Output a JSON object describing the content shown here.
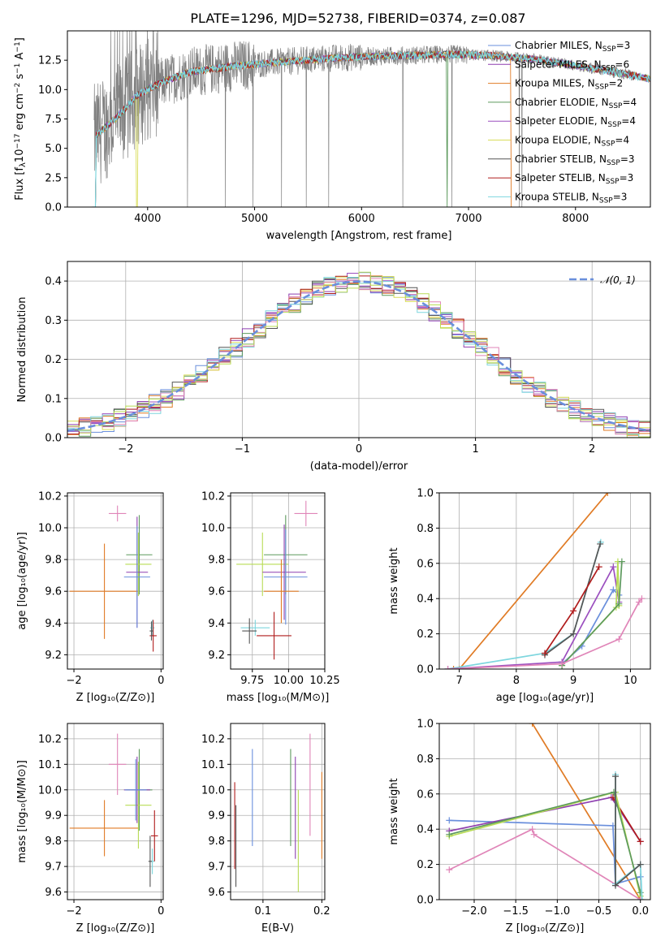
{
  "title": "PLATE=1296, MJD=52738, FIBERID=0374, z=0.087",
  "colors": {
    "chabrier_miles": "#6a8fdc",
    "salpeter_miles": "#8e3fb0",
    "kroupa_miles": "#e07b25",
    "chabrier_elodie": "#5d9a5d",
    "salpeter_elodie": "#9b4fbf",
    "kroupa_elodie": "#d9dd5a",
    "chabrier_stelib": "#555555",
    "salpeter_stelib": "#b01c1c",
    "kroupa_stelib": "#7dd6de",
    "pink": "#e085b8",
    "lime": "#b8dc55",
    "data": "#808080"
  },
  "legend_spectrum": [
    {
      "key": "chabrier_miles",
      "label": "Chabrier MILES, N",
      "sub": "SSP",
      "eq": "=3"
    },
    {
      "key": "salpeter_miles",
      "label": "Salpeter MILES, N",
      "sub": "SSP",
      "eq": "=6"
    },
    {
      "key": "kroupa_miles",
      "label": "Kroupa MILES, N",
      "sub": "SSP",
      "eq": "=2"
    },
    {
      "key": "chabrier_elodie",
      "label": "Chabrier ELODIE, N",
      "sub": "SSP",
      "eq": "=4"
    },
    {
      "key": "salpeter_elodie",
      "label": "Salpeter ELODIE, N",
      "sub": "SSP",
      "eq": "=4"
    },
    {
      "key": "kroupa_elodie",
      "label": "Kroupa ELODIE, N",
      "sub": "SSP",
      "eq": "=4"
    },
    {
      "key": "chabrier_stelib",
      "label": "Chabrier STELIB, N",
      "sub": "SSP",
      "eq": "=3"
    },
    {
      "key": "salpeter_stelib",
      "label": "Salpeter STELIB, N",
      "sub": "SSP",
      "eq": "=3"
    },
    {
      "key": "kroupa_stelib",
      "label": "Kroupa STELIB, N",
      "sub": "SSP",
      "eq": "=3"
    }
  ],
  "chart_data": [
    {
      "id": "spectrum",
      "type": "line",
      "xlabel": "wavelength [Angstrom, rest frame]",
      "ylabel_parts": [
        "Flux [f",
        "λ",
        "10",
        "−17",
        " erg cm",
        "−2",
        " s",
        "−1",
        " A",
        "−1",
        "]"
      ],
      "xlim": [
        3250,
        8700
      ],
      "ylim": [
        0,
        15
      ],
      "xticks": [
        4000,
        5000,
        6000,
        7000,
        8000
      ],
      "yticks": [
        0.0,
        2.5,
        5.0,
        7.5,
        10.0,
        12.5
      ],
      "ytick_labels": [
        "0.0",
        "2.5",
        "5.0",
        "7.5",
        "10.0",
        "12.5"
      ],
      "continuum": [
        [
          3500,
          6.0
        ],
        [
          3700,
          7.5
        ],
        [
          3900,
          9.5
        ],
        [
          4100,
          10.5
        ],
        [
          4400,
          11.5
        ],
        [
          4800,
          12.0
        ],
        [
          5200,
          12.3
        ],
        [
          5600,
          12.6
        ],
        [
          6000,
          12.8
        ],
        [
          6400,
          12.9
        ],
        [
          6800,
          13.0
        ],
        [
          7200,
          12.9
        ],
        [
          7600,
          12.6
        ],
        [
          7900,
          12.2
        ],
        [
          8300,
          11.6
        ],
        [
          8700,
          10.9
        ]
      ],
      "model_breaks": [
        {
          "key": "kroupa_miles",
          "x": 7400
        },
        {
          "key": "chabrier_elodie",
          "x": 6800
        },
        {
          "key": "kroupa_elodie",
          "x": 3900
        },
        {
          "key": "salpeter_elodie",
          "x": 3500
        }
      ]
    },
    {
      "id": "residuals",
      "type": "histogram",
      "xlabel": "(data-model)/error",
      "ylabel": "Normed distribution",
      "xlim": [
        -2.5,
        2.5
      ],
      "ylim": [
        0,
        0.45
      ],
      "xticks": [
        -2,
        -1,
        0,
        1,
        2
      ],
      "yticks": [
        0.0,
        0.1,
        0.2,
        0.3,
        0.4
      ],
      "ytick_labels": [
        "0.0",
        "0.1",
        "0.2",
        "0.3",
        "0.4"
      ],
      "bin_width": 0.1,
      "legend": "𝒩(0, 1)",
      "gaussian": {
        "mu": 0,
        "sigma": 1
      }
    },
    {
      "id": "age_vs_Z",
      "type": "errorbar",
      "xlabel": "Z [log₁₀(Z/Z⊙)]",
      "ylabel": "age  [log₁₀(age/yr)]",
      "xlim": [
        -2.15,
        0.05
      ],
      "ylim": [
        9.11,
        10.22
      ],
      "xticks": [
        -2,
        0
      ],
      "yticks": [
        9.2,
        9.4,
        9.6,
        9.8,
        10.0,
        10.2
      ],
      "ytick_labels": [
        "9.2",
        "9.4",
        "9.6",
        "9.8",
        "10.0",
        "10.2"
      ],
      "points": [
        {
          "c": "pink",
          "x": -1.0,
          "y": 10.09,
          "xe": 0.2,
          "ye": 0.05
        },
        {
          "c": "kroupa_miles",
          "x": -1.3,
          "y": 9.6,
          "xe": 0.8,
          "ye": 0.3
        },
        {
          "c": "chabrier_elodie",
          "x": -0.5,
          "y": 9.83,
          "xe": 0.3,
          "ye": 0.25
        },
        {
          "c": "lime",
          "x": -0.52,
          "y": 9.77,
          "xe": 0.3,
          "ye": 0.2
        },
        {
          "c": "salpeter_miles",
          "x": -0.55,
          "y": 9.72,
          "xe": 0.25,
          "ye": 0.35
        },
        {
          "c": "chabrier_miles",
          "x": -0.55,
          "y": 9.69,
          "xe": 0.3,
          "ye": 0.32
        },
        {
          "c": "kroupa_stelib",
          "x": -0.2,
          "y": 9.37,
          "xe": 0.05,
          "ye": 0.05
        },
        {
          "c": "salpeter_stelib",
          "x": -0.18,
          "y": 9.32,
          "xe": 0.08,
          "ye": 0.1
        },
        {
          "c": "chabrier_stelib",
          "x": -0.22,
          "y": 9.35,
          "xe": 0.04,
          "ye": 0.06
        }
      ]
    },
    {
      "id": "age_vs_mass",
      "type": "errorbar",
      "xlabel": "mass [log₁₀(M/M⊙)]",
      "ylabel": "",
      "xlim": [
        9.6,
        10.25
      ],
      "ylim": [
        9.11,
        10.22
      ],
      "xticks": [
        9.75,
        10.0,
        10.25
      ],
      "xtick_labels": [
        "9.75",
        "10.00",
        "10.25"
      ],
      "yticks": [
        9.2,
        9.4,
        9.6,
        9.8,
        10.0,
        10.2
      ],
      "ytick_labels": [
        "9.2",
        "9.4",
        "9.6",
        "9.8",
        "10.0",
        "10.2"
      ],
      "points": [
        {
          "c": "pink",
          "x": 10.12,
          "y": 10.09,
          "xe": 0.08,
          "ye": 0.08
        },
        {
          "c": "chabrier_elodie",
          "x": 9.98,
          "y": 9.83,
          "xe": 0.15,
          "ye": 0.25
        },
        {
          "c": "lime",
          "x": 9.82,
          "y": 9.77,
          "xe": 0.18,
          "ye": 0.2
        },
        {
          "c": "salpeter_miles",
          "x": 9.97,
          "y": 9.72,
          "xe": 0.15,
          "ye": 0.3
        },
        {
          "c": "chabrier_miles",
          "x": 9.98,
          "y": 9.69,
          "xe": 0.15,
          "ye": 0.3
        },
        {
          "c": "kroupa_miles",
          "x": 9.95,
          "y": 9.6,
          "xe": 0.12,
          "ye": 0.2
        },
        {
          "c": "kroupa_stelib",
          "x": 9.77,
          "y": 9.37,
          "xe": 0.1,
          "ye": 0.05
        },
        {
          "c": "salpeter_stelib",
          "x": 9.9,
          "y": 9.32,
          "xe": 0.12,
          "ye": 0.15
        },
        {
          "c": "chabrier_stelib",
          "x": 9.73,
          "y": 9.35,
          "xe": 0.05,
          "ye": 0.08
        }
      ]
    },
    {
      "id": "weight_vs_age",
      "type": "line",
      "xlabel": "age  [log₁₀(age/yr)]",
      "ylabel": "mass weight",
      "xlim": [
        6.65,
        10.35
      ],
      "ylim": [
        0,
        1
      ],
      "xticks": [
        7,
        8,
        9,
        10
      ],
      "yticks": [
        0.0,
        0.2,
        0.4,
        0.6,
        0.8,
        1.0
      ],
      "ytick_labels": [
        "0.0",
        "0.2",
        "0.4",
        "0.6",
        "0.8",
        "1.0"
      ],
      "series": [
        {
          "c": "kroupa_miles",
          "pts": [
            [
              6.9,
              0.0
            ],
            [
              7.0,
              0.0
            ],
            [
              9.6,
              1.0
            ]
          ]
        },
        {
          "c": "kroupa_stelib",
          "pts": [
            [
              6.8,
              0.0
            ],
            [
              8.5,
              0.09
            ],
            [
              9.0,
              0.2
            ],
            [
              9.48,
              0.72
            ]
          ]
        },
        {
          "c": "chabrier_stelib",
          "pts": [
            [
              8.5,
              0.08
            ],
            [
              9.0,
              0.2
            ],
            [
              9.47,
              0.71
            ]
          ]
        },
        {
          "c": "salpeter_stelib",
          "pts": [
            [
              8.5,
              0.09
            ],
            [
              9.0,
              0.33
            ],
            [
              9.45,
              0.58
            ]
          ]
        },
        {
          "c": "chabrier_miles",
          "pts": [
            [
              8.8,
              0.03
            ],
            [
              9.15,
              0.13
            ],
            [
              9.7,
              0.45
            ],
            [
              9.8,
              0.42
            ]
          ]
        },
        {
          "c": "salpeter_elodie",
          "pts": [
            [
              6.8,
              0.0
            ],
            [
              8.8,
              0.04
            ],
            [
              9.7,
              0.58
            ],
            [
              9.8,
              0.38
            ]
          ]
        },
        {
          "c": "lime",
          "pts": [
            [
              8.8,
              0.02
            ],
            [
              9.75,
              0.35
            ],
            [
              9.78,
              0.61
            ],
            [
              9.8,
              0.36
            ]
          ]
        },
        {
          "c": "chabrier_elodie",
          "pts": [
            [
              8.8,
              0.02
            ],
            [
              9.8,
              0.37
            ],
            [
              9.85,
              0.61
            ]
          ]
        },
        {
          "c": "pink",
          "pts": [
            [
              6.8,
              0.0
            ],
            [
              8.8,
              0.03
            ],
            [
              9.8,
              0.17
            ],
            [
              10.15,
              0.38
            ],
            [
              10.2,
              0.4
            ]
          ]
        }
      ]
    },
    {
      "id": "mass_vs_Z",
      "type": "errorbar",
      "xlabel": "Z [log₁₀(Z/Z⊙)]",
      "ylabel": "mass [log₁₀(M/M⊙)]",
      "xlim": [
        -2.15,
        0.05
      ],
      "ylim": [
        9.57,
        10.26
      ],
      "xticks": [
        -2,
        0
      ],
      "yticks": [
        9.6,
        9.7,
        9.8,
        9.9,
        10.0,
        10.1,
        10.2
      ],
      "ytick_labels": [
        "9.6",
        "9.7",
        "9.8",
        "9.9",
        "10.0",
        "10.1",
        "10.2"
      ],
      "points": [
        {
          "c": "pink",
          "x": -1.0,
          "y": 10.1,
          "xe": 0.2,
          "ye": 0.12
        },
        {
          "c": "kroupa_miles",
          "x": -1.3,
          "y": 9.85,
          "xe": 0.8,
          "ye": 0.11
        },
        {
          "c": "chabrier_elodie",
          "x": -0.5,
          "y": 10.0,
          "xe": 0.3,
          "ye": 0.16
        },
        {
          "c": "lime",
          "x": -0.52,
          "y": 9.94,
          "xe": 0.3,
          "ye": 0.17
        },
        {
          "c": "salpeter_miles",
          "x": -0.55,
          "y": 10.0,
          "xe": 0.3,
          "ye": 0.13
        },
        {
          "c": "chabrier_miles",
          "x": -0.58,
          "y": 10.0,
          "xe": 0.25,
          "ye": 0.12
        },
        {
          "c": "kroupa_stelib",
          "x": -0.2,
          "y": 9.72,
          "xe": 0.05,
          "ye": 0.05
        },
        {
          "c": "salpeter_stelib",
          "x": -0.15,
          "y": 9.82,
          "xe": 0.08,
          "ye": 0.1
        },
        {
          "c": "chabrier_stelib",
          "x": -0.25,
          "y": 9.72,
          "xe": 0.04,
          "ye": 0.1
        }
      ]
    },
    {
      "id": "mass_vs_ebv",
      "type": "errorbar",
      "xlabel": "E(B-V)",
      "ylabel": "",
      "xlim": [
        0.045,
        0.205
      ],
      "ylim": [
        9.57,
        10.26
      ],
      "xticks": [
        0.1,
        0.2
      ],
      "yticks": [
        9.6,
        9.7,
        9.8,
        9.9,
        10.0,
        10.1,
        10.2
      ],
      "ytick_labels": [
        "9.6",
        "9.7",
        "9.8",
        "9.9",
        "10.0",
        "10.1",
        "10.2"
      ],
      "points": [
        {
          "c": "salpeter_stelib",
          "x": 0.052,
          "y": 9.86,
          "xe": 0,
          "ye": 0.17
        },
        {
          "c": "chabrier_stelib",
          "x": 0.054,
          "y": 9.78,
          "xe": 0,
          "ye": 0.16
        },
        {
          "c": "chabrier_miles",
          "x": 0.082,
          "y": 9.97,
          "xe": 0,
          "ye": 0.19
        },
        {
          "c": "chabrier_elodie",
          "x": 0.147,
          "y": 9.97,
          "xe": 0,
          "ye": 0.19
        },
        {
          "c": "salpeter_miles",
          "x": 0.155,
          "y": 9.93,
          "xe": 0,
          "ye": 0.2
        },
        {
          "c": "lime",
          "x": 0.16,
          "y": 9.8,
          "xe": 0,
          "ye": 0.2
        },
        {
          "c": "pink",
          "x": 0.18,
          "y": 10.02,
          "xe": 0,
          "ye": 0.2
        },
        {
          "c": "kroupa_miles",
          "x": 0.2,
          "y": 9.9,
          "xe": 0,
          "ye": 0.17
        }
      ]
    },
    {
      "id": "weight_vs_Z",
      "type": "line",
      "xlabel": "Z [log₁₀(Z/Z⊙)]",
      "ylabel": "mass weight",
      "xlim": [
        -2.42,
        0.12
      ],
      "ylim": [
        0,
        1
      ],
      "xticks": [
        -2.0,
        -1.5,
        -1.0,
        -0.5,
        0.0
      ],
      "xtick_labels": [
        "−2.0",
        "−1.5",
        "−1.0",
        "−0.5",
        "0.0"
      ],
      "yticks": [
        0.0,
        0.2,
        0.4,
        0.6,
        0.8,
        1.0
      ],
      "ytick_labels": [
        "0.0",
        "0.2",
        "0.4",
        "0.6",
        "0.8",
        "1.0"
      ],
      "series": [
        {
          "c": "kroupa_miles",
          "pts": [
            [
              -1.3,
              1.0
            ],
            [
              0.0,
              0.0
            ]
          ]
        },
        {
          "c": "chabrier_miles",
          "pts": [
            [
              -2.3,
              0.45
            ],
            [
              -0.33,
              0.42
            ],
            [
              -0.3,
              0.09
            ],
            [
              0.0,
              0.13
            ]
          ]
        },
        {
          "c": "salpeter_miles",
          "pts": [
            [
              -2.3,
              0.39
            ],
            [
              -0.35,
              0.58
            ],
            [
              0.0,
              0.33
            ]
          ]
        },
        {
          "c": "salpeter_stelib",
          "pts": [
            [
              -0.33,
              0.58
            ],
            [
              0.0,
              0.33
            ]
          ]
        },
        {
          "c": "lime",
          "pts": [
            [
              -2.3,
              0.36
            ],
            [
              -0.3,
              0.61
            ],
            [
              0.0,
              0.02
            ]
          ]
        },
        {
          "c": "chabrier_elodie",
          "pts": [
            [
              -2.3,
              0.37
            ],
            [
              -0.32,
              0.61
            ],
            [
              0.0,
              0.04
            ]
          ]
        },
        {
          "c": "pink",
          "pts": [
            [
              -2.3,
              0.17
            ],
            [
              -1.3,
              0.4
            ],
            [
              -1.28,
              0.37
            ],
            [
              0.0,
              0.0
            ]
          ]
        },
        {
          "c": "kroupa_stelib",
          "pts": [
            [
              -0.3,
              0.71
            ],
            [
              -0.3,
              0.09
            ],
            [
              0.0,
              0.2
            ],
            [
              0.02,
              0.0
            ]
          ]
        },
        {
          "c": "chabrier_stelib",
          "pts": [
            [
              -0.3,
              0.7
            ],
            [
              -0.3,
              0.08
            ],
            [
              0.0,
              0.2
            ]
          ]
        }
      ]
    }
  ]
}
